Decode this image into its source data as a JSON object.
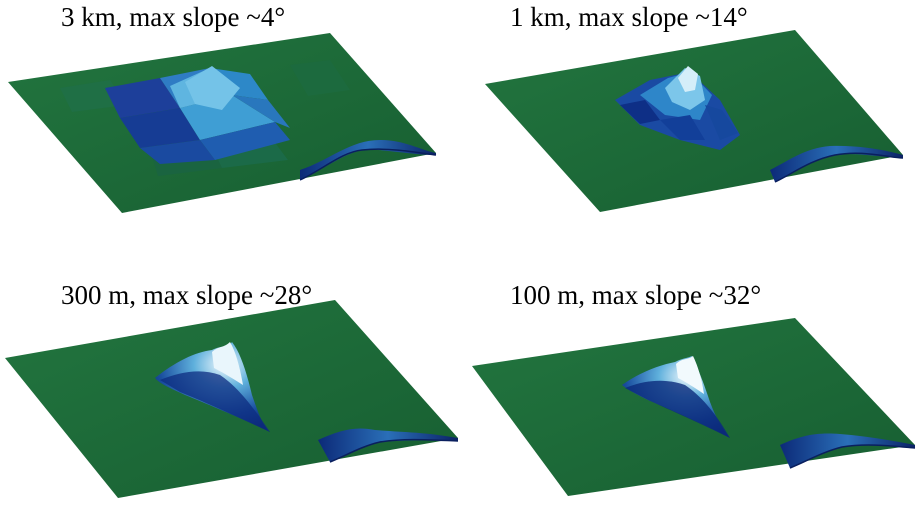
{
  "panels": [
    {
      "caption": "3 km, max slope ~4°"
    },
    {
      "caption": "1 km, max slope ~14°"
    },
    {
      "caption": "300 m, max slope ~28°"
    },
    {
      "caption": "100 m, max slope ~32°"
    }
  ],
  "colors": {
    "plain": "#1e6b3a",
    "plain_dark": "#145a2e",
    "peak_light": "#e8f4fb",
    "peak_mid": "#3a9bd1",
    "peak_dark": "#0b2b7a"
  }
}
